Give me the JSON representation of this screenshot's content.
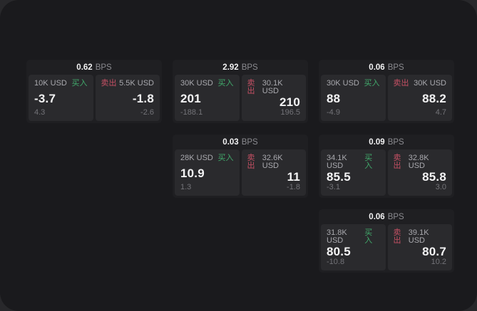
{
  "labels": {
    "bps_unit": "BPS",
    "buy": "买入",
    "sell": "卖出"
  },
  "colors": {
    "window_bg": "#1a1a1d",
    "card_bg": "#1f1f22",
    "panel_bg": "#2a2a2d",
    "buy_green": "#41a96b",
    "sell_red": "#c55064"
  },
  "cards": [
    {
      "bps": "0.62",
      "buy": {
        "amount": "10K USD",
        "value": "-3.7",
        "sub": "4.3"
      },
      "sell": {
        "amount": "5.5K USD",
        "value": "-1.8",
        "sub": "-2.6"
      }
    },
    {
      "bps": "2.92",
      "buy": {
        "amount": "30K USD",
        "value": "201",
        "sub": "-188.1"
      },
      "sell": {
        "amount": "30.1K USD",
        "value": "210",
        "sub": "196.5"
      }
    },
    {
      "bps": "0.06",
      "buy": {
        "amount": "30K USD",
        "value": "88",
        "sub": "-4.9"
      },
      "sell": {
        "amount": "30K USD",
        "value": "88.2",
        "sub": "4.7"
      }
    },
    {
      "bps": "0.03",
      "buy": {
        "amount": "28K USD",
        "value": "10.9",
        "sub": "1.3"
      },
      "sell": {
        "amount": "32.6K USD",
        "value": "11",
        "sub": "-1.8"
      }
    },
    {
      "bps": "0.09",
      "buy": {
        "amount": "34.1K USD",
        "value": "85.5",
        "sub": "-3.1"
      },
      "sell": {
        "amount": "32.8K USD",
        "value": "85.8",
        "sub": "3.0"
      }
    },
    {
      "bps": "0.06",
      "buy": {
        "amount": "31.8K USD",
        "value": "80.5",
        "sub": "-10.8"
      },
      "sell": {
        "amount": "39.1K USD",
        "value": "80.7",
        "sub": "10.2"
      }
    }
  ]
}
